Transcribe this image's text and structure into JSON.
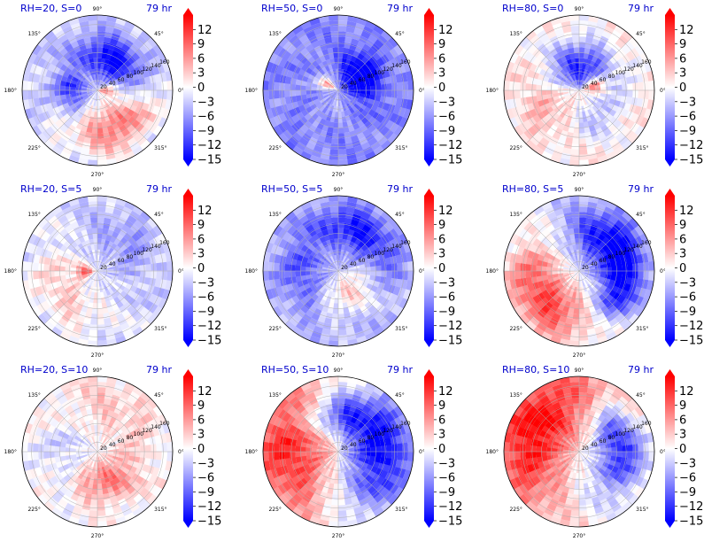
{
  "chart_data": {
    "type": "heatmap",
    "layout": {
      "rows": 3,
      "cols": 3,
      "projection": "polar"
    },
    "colormap": {
      "name": "bwr",
      "low": "#0000ff",
      "mid": "#ffffff",
      "high": "#ff0000"
    },
    "colorbar": {
      "ticks": [
        "12",
        "9",
        "6",
        "3",
        "0",
        "−3",
        "−6",
        "−9",
        "−12",
        "−15"
      ],
      "range": [
        -15,
        15
      ],
      "extend": "both"
    },
    "angle_ticks": [
      "0°",
      "45°",
      "90°",
      "135°",
      "180°",
      "225°",
      "270°",
      "315°"
    ],
    "radial_ticks": [
      "20",
      "40",
      "60",
      "80",
      "100",
      "120",
      "140",
      "160"
    ],
    "panels": [
      {
        "title": "RH=20, S=0",
        "time": "79 hr",
        "pattern": {
          "base": -3,
          "blobs": [
            {
              "angle": 300,
              "radius": 0.55,
              "spread": 0.35,
              "value": 11
            },
            {
              "angle": 60,
              "radius": 0.45,
              "spread": 0.3,
              "value": -13
            },
            {
              "angle": 180,
              "radius": 0.35,
              "spread": 0.22,
              "value": -9
            },
            {
              "angle": 0,
              "radius": 0.05,
              "spread": 0.18,
              "value": 10
            }
          ]
        }
      },
      {
        "title": "RH=50, S=0",
        "time": "79 hr",
        "pattern": {
          "base": -7,
          "blobs": [
            {
              "angle": 150,
              "radius": 0.15,
              "spread": 0.15,
              "value": 12
            },
            {
              "angle": 30,
              "radius": 0.35,
              "spread": 0.25,
              "value": -13
            },
            {
              "angle": 260,
              "radius": 0.2,
              "spread": 0.18,
              "value": 3
            }
          ]
        }
      },
      {
        "title": "RH=80, S=0",
        "time": "79 hr",
        "pattern": {
          "base": 1,
          "blobs": [
            {
              "angle": 90,
              "radius": 0.3,
              "spread": 0.35,
              "value": -14
            },
            {
              "angle": 20,
              "radius": 0.2,
              "spread": 0.12,
              "value": 11
            },
            {
              "angle": 200,
              "radius": 0.5,
              "spread": 0.3,
              "value": 4
            },
            {
              "angle": 300,
              "radius": 0.45,
              "spread": 0.25,
              "value": -5
            }
          ]
        }
      },
      {
        "title": "RH=20, S=5",
        "time": "79 hr",
        "pattern": {
          "base": -2,
          "blobs": [
            {
              "angle": 180,
              "radius": 0.15,
              "spread": 0.12,
              "value": 13
            },
            {
              "angle": 210,
              "radius": 0.55,
              "spread": 0.35,
              "value": 5
            },
            {
              "angle": 45,
              "radius": 0.55,
              "spread": 0.35,
              "value": -4
            }
          ]
        }
      },
      {
        "title": "RH=50, S=5",
        "time": "79 hr",
        "pattern": {
          "base": -4,
          "blobs": [
            {
              "angle": 300,
              "radius": 0.3,
              "spread": 0.3,
              "value": 7
            },
            {
              "angle": 60,
              "radius": 0.6,
              "spread": 0.3,
              "value": -10
            },
            {
              "angle": 180,
              "radius": 0.5,
              "spread": 0.3,
              "value": -6
            }
          ]
        }
      },
      {
        "title": "RH=80, S=5",
        "time": "79 hr",
        "pattern": {
          "base": -3,
          "blobs": [
            {
              "angle": 220,
              "radius": 0.6,
              "spread": 0.45,
              "value": 14
            },
            {
              "angle": 40,
              "radius": 0.55,
              "spread": 0.35,
              "value": -13
            },
            {
              "angle": 330,
              "radius": 0.6,
              "spread": 0.25,
              "value": -10
            }
          ]
        }
      },
      {
        "title": "RH=20, S=10",
        "time": "79 hr",
        "pattern": {
          "base": 0,
          "blobs": [
            {
              "angle": 290,
              "radius": 0.4,
              "spread": 0.3,
              "value": 8
            },
            {
              "angle": 90,
              "radius": 0.6,
              "spread": 0.4,
              "value": 4
            },
            {
              "angle": 160,
              "radius": 0.5,
              "spread": 0.35,
              "value": -4
            }
          ]
        }
      },
      {
        "title": "RH=50, S=10",
        "time": "79 hr",
        "pattern": {
          "base": 0,
          "blobs": [
            {
              "angle": 170,
              "radius": 0.65,
              "spread": 0.55,
              "value": 14
            },
            {
              "angle": 0,
              "radius": 0.6,
              "spread": 0.5,
              "value": -15
            },
            {
              "angle": 90,
              "radius": 0.5,
              "spread": 0.3,
              "value": -11
            }
          ]
        }
      },
      {
        "title": "RH=80, S=10",
        "time": "79 hr",
        "pattern": {
          "base": 0,
          "blobs": [
            {
              "angle": 150,
              "radius": 0.65,
              "spread": 0.55,
              "value": 15
            },
            {
              "angle": 20,
              "radius": 0.55,
              "spread": 0.3,
              "value": -14
            },
            {
              "angle": 300,
              "radius": 0.6,
              "spread": 0.4,
              "value": -4
            }
          ]
        }
      }
    ]
  }
}
